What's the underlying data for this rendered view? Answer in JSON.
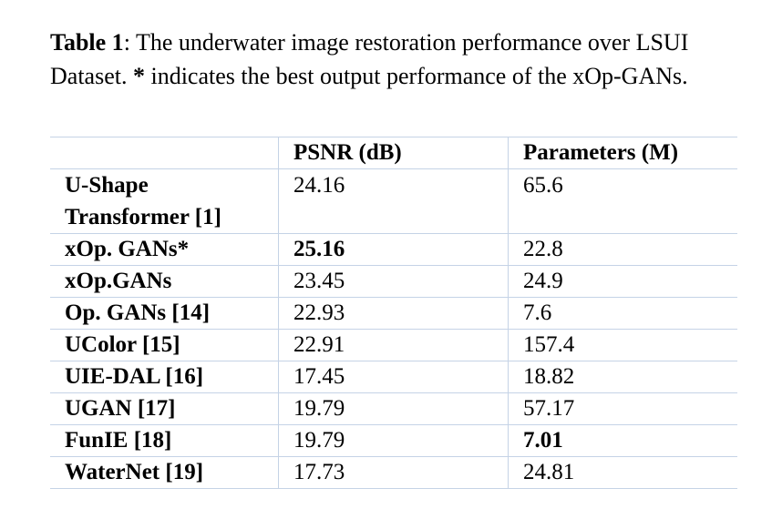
{
  "caption": {
    "label": "Table 1",
    "text_before": ": The underwater image restoration performance over LSUI Dataset. ",
    "mark": "*",
    "text_after": " indicates the best output performance of the xOp-GANs."
  },
  "table": {
    "headers": [
      "PSNR (dB)",
      "Parameters (M)"
    ],
    "rows": [
      [
        "U-Shape Transformer [1]",
        "24.16",
        "65.6"
      ],
      [
        "xOp. GANs*",
        "25.16",
        "22.8"
      ],
      [
        "xOp.GANs",
        "23.45",
        "24.9"
      ],
      [
        "Op. GANs [14]",
        "22.93",
        "7.6"
      ],
      [
        "UColor [15]",
        "22.91",
        "157.4"
      ],
      [
        "UIE-DAL [16]",
        "17.45",
        "18.82"
      ],
      [
        "UGAN [17]",
        "19.79",
        "57.17"
      ],
      [
        "FunIE [18]",
        "19.79",
        "7.01"
      ],
      [
        "WaterNet [19]",
        "17.73",
        "24.81"
      ]
    ]
  }
}
